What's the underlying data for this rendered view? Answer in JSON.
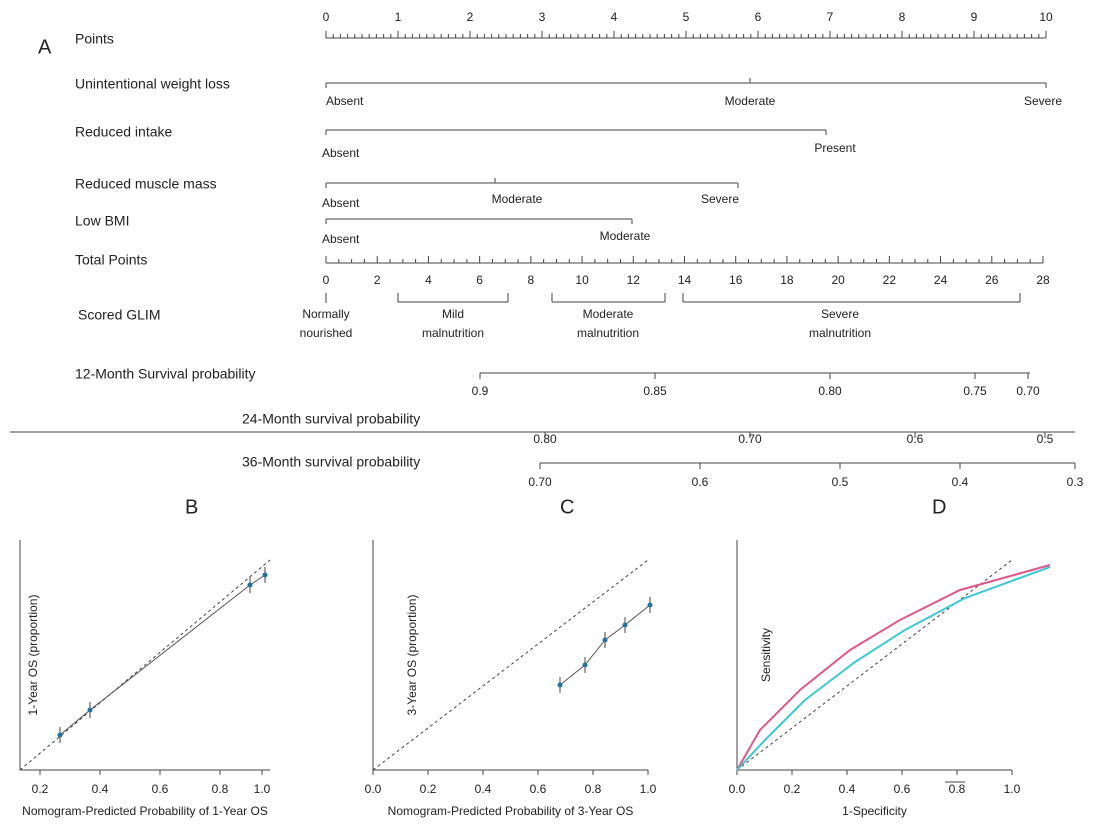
{
  "panel_a": {
    "label": "A",
    "points": {
      "label": "Points",
      "ticks": [
        "0",
        "1",
        "2",
        "3",
        "4",
        "5",
        "6",
        "7",
        "8",
        "9",
        "10"
      ]
    },
    "variables": [
      {
        "label": "Unintentional weight loss",
        "levels": [
          "Absent",
          "Moderate",
          "Severe"
        ]
      },
      {
        "label": "Reduced intake",
        "levels": [
          "Absent",
          "Present"
        ]
      },
      {
        "label": "Reduced muscle mass",
        "levels": [
          "Absent",
          "Moderate",
          "Severe"
        ]
      },
      {
        "label": "Low BMI",
        "levels": [
          "Absent",
          "Moderate"
        ]
      }
    ],
    "total_points": {
      "label": "Total Points",
      "ticks": [
        "0",
        "2",
        "4",
        "6",
        "8",
        "10",
        "12",
        "14",
        "16",
        "18",
        "20",
        "22",
        "24",
        "26",
        "28"
      ]
    },
    "glim": {
      "label": "Scored GLIM",
      "groups": [
        "Normally nourished",
        "Mild malnutrition",
        "Moderate malnutrition",
        "Severe malnutrition"
      ]
    },
    "survival": [
      {
        "label": "12-Month Survival probability",
        "ticks": [
          "0.9",
          "0.85",
          "0.80",
          "0.75",
          "0.70"
        ]
      },
      {
        "label": "24-Month survival probability",
        "ticks": [
          "0.80",
          "0.70",
          "0.6",
          "0.5"
        ]
      },
      {
        "label": "36-Month survival probability",
        "ticks": [
          "0.70",
          "0.6",
          "0.5",
          "0.4",
          "0.3"
        ]
      }
    ]
  },
  "panels": [
    {
      "label": "B",
      "y_label": "1-Year OS (proportion)",
      "x_label": "Nomogram-Predicted Probability of 1-Year OS",
      "x_ticks": [
        "0.2",
        "0.4",
        "0.6",
        "0.8",
        "1.0"
      ]
    },
    {
      "label": "C",
      "y_label": "3-Year OS (proportion)",
      "x_label": "Nomogram-Predicted Probability of 3-Year OS",
      "x_ticks": [
        "0.0",
        "0.2",
        "0.4",
        "0.6",
        "0.8",
        "1.0"
      ]
    },
    {
      "label": "D",
      "y_label": "Sensitivity",
      "x_label": "1-Specificity",
      "x_ticks": [
        "0.0",
        "0.2",
        "0.4",
        "0.6",
        "0.8",
        "1.0"
      ]
    }
  ]
}
